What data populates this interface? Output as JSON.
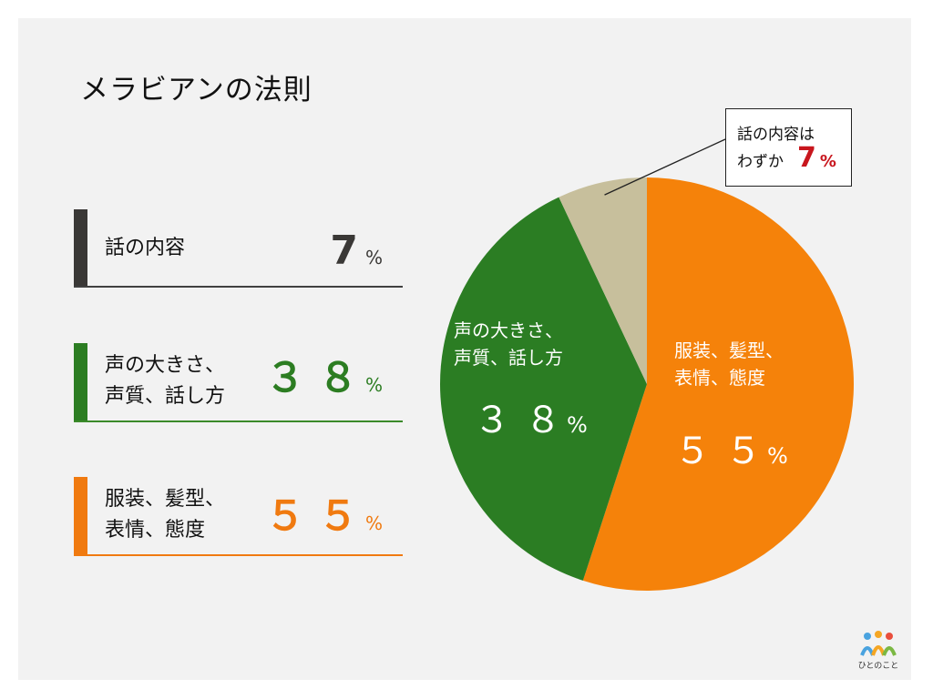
{
  "title": "メラビアンの法則",
  "pct_symbol": "%",
  "legend": [
    {
      "label": "話の内容",
      "value": "7",
      "color": "#3a3836"
    },
    {
      "label": "声の大きさ、\n声質、話し方",
      "value": "３８",
      "color": "#2c7d22"
    },
    {
      "label": "服装、髪型、\n表情、態度",
      "value": "５５",
      "color": "#f07a10"
    }
  ],
  "callout": {
    "line1": "話の内容は",
    "line2": "わずか",
    "value": "7"
  },
  "pie_labels": {
    "voice": {
      "label": "声の大きさ、\n声質、話し方",
      "value": "３８"
    },
    "look": {
      "label": "服装、髪型、\n表情、態度",
      "value": "５５"
    }
  },
  "logo": {
    "text": "ひとのこと"
  },
  "chart_data": {
    "type": "pie",
    "title": "メラビアンの法則",
    "categories": [
      "服装、髪型、表情、態度",
      "声の大きさ、声質、話し方",
      "話の内容"
    ],
    "values": [
      55,
      38,
      7
    ],
    "unit": "%",
    "colors": [
      "#f5820a",
      "#2b7d23",
      "#c7bf9c"
    ],
    "start_angle": "12 o'clock",
    "direction": "clockwise"
  }
}
